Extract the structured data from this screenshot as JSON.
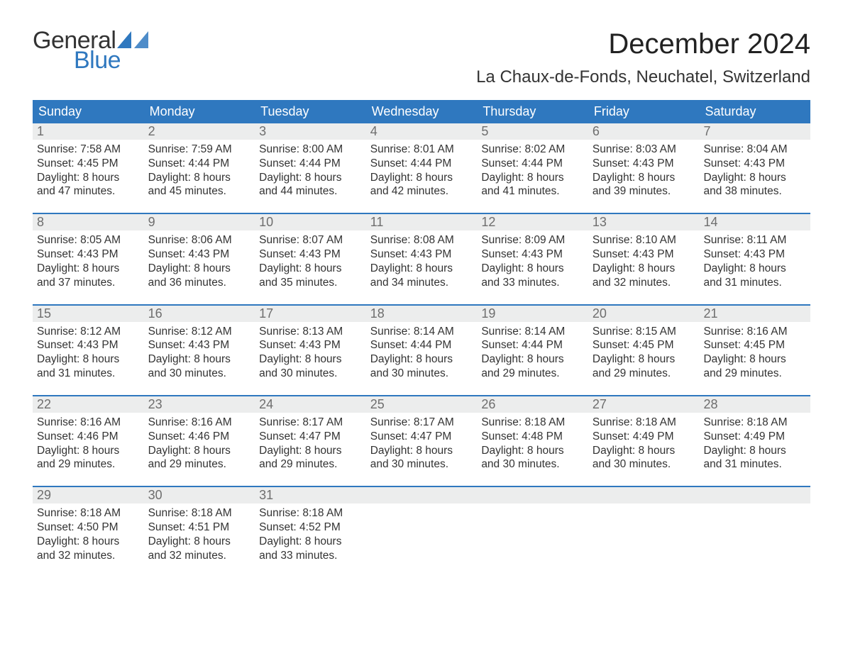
{
  "brand": {
    "word1": "General",
    "word2": "Blue",
    "color_text": "#333333",
    "color_blue": "#2f78bf"
  },
  "title": "December 2024",
  "location": "La Chaux-de-Fonds, Neuchatel, Switzerland",
  "colors": {
    "header_bg": "#2f78bf",
    "header_text": "#ffffff",
    "daynum_bg": "#eceded",
    "daynum_text": "#6e6e6e",
    "body_text": "#333333",
    "rule": "#2f78bf",
    "page_bg": "#ffffff"
  },
  "typography": {
    "title_fontsize": 40,
    "location_fontsize": 24,
    "weekday_fontsize": 18,
    "daynum_fontsize": 18,
    "body_fontsize": 15.5
  },
  "layout": {
    "columns": 7,
    "rows": 5,
    "start_weekday": "Sunday"
  },
  "weekdays": [
    "Sunday",
    "Monday",
    "Tuesday",
    "Wednesday",
    "Thursday",
    "Friday",
    "Saturday"
  ],
  "weeks": [
    [
      {
        "n": "1",
        "sunrise": "Sunrise: 7:58 AM",
        "sunset": "Sunset: 4:45 PM",
        "daylight": "Daylight: 8 hours and 47 minutes."
      },
      {
        "n": "2",
        "sunrise": "Sunrise: 7:59 AM",
        "sunset": "Sunset: 4:44 PM",
        "daylight": "Daylight: 8 hours and 45 minutes."
      },
      {
        "n": "3",
        "sunrise": "Sunrise: 8:00 AM",
        "sunset": "Sunset: 4:44 PM",
        "daylight": "Daylight: 8 hours and 44 minutes."
      },
      {
        "n": "4",
        "sunrise": "Sunrise: 8:01 AM",
        "sunset": "Sunset: 4:44 PM",
        "daylight": "Daylight: 8 hours and 42 minutes."
      },
      {
        "n": "5",
        "sunrise": "Sunrise: 8:02 AM",
        "sunset": "Sunset: 4:44 PM",
        "daylight": "Daylight: 8 hours and 41 minutes."
      },
      {
        "n": "6",
        "sunrise": "Sunrise: 8:03 AM",
        "sunset": "Sunset: 4:43 PM",
        "daylight": "Daylight: 8 hours and 39 minutes."
      },
      {
        "n": "7",
        "sunrise": "Sunrise: 8:04 AM",
        "sunset": "Sunset: 4:43 PM",
        "daylight": "Daylight: 8 hours and 38 minutes."
      }
    ],
    [
      {
        "n": "8",
        "sunrise": "Sunrise: 8:05 AM",
        "sunset": "Sunset: 4:43 PM",
        "daylight": "Daylight: 8 hours and 37 minutes."
      },
      {
        "n": "9",
        "sunrise": "Sunrise: 8:06 AM",
        "sunset": "Sunset: 4:43 PM",
        "daylight": "Daylight: 8 hours and 36 minutes."
      },
      {
        "n": "10",
        "sunrise": "Sunrise: 8:07 AM",
        "sunset": "Sunset: 4:43 PM",
        "daylight": "Daylight: 8 hours and 35 minutes."
      },
      {
        "n": "11",
        "sunrise": "Sunrise: 8:08 AM",
        "sunset": "Sunset: 4:43 PM",
        "daylight": "Daylight: 8 hours and 34 minutes."
      },
      {
        "n": "12",
        "sunrise": "Sunrise: 8:09 AM",
        "sunset": "Sunset: 4:43 PM",
        "daylight": "Daylight: 8 hours and 33 minutes."
      },
      {
        "n": "13",
        "sunrise": "Sunrise: 8:10 AM",
        "sunset": "Sunset: 4:43 PM",
        "daylight": "Daylight: 8 hours and 32 minutes."
      },
      {
        "n": "14",
        "sunrise": "Sunrise: 8:11 AM",
        "sunset": "Sunset: 4:43 PM",
        "daylight": "Daylight: 8 hours and 31 minutes."
      }
    ],
    [
      {
        "n": "15",
        "sunrise": "Sunrise: 8:12 AM",
        "sunset": "Sunset: 4:43 PM",
        "daylight": "Daylight: 8 hours and 31 minutes."
      },
      {
        "n": "16",
        "sunrise": "Sunrise: 8:12 AM",
        "sunset": "Sunset: 4:43 PM",
        "daylight": "Daylight: 8 hours and 30 minutes."
      },
      {
        "n": "17",
        "sunrise": "Sunrise: 8:13 AM",
        "sunset": "Sunset: 4:43 PM",
        "daylight": "Daylight: 8 hours and 30 minutes."
      },
      {
        "n": "18",
        "sunrise": "Sunrise: 8:14 AM",
        "sunset": "Sunset: 4:44 PM",
        "daylight": "Daylight: 8 hours and 30 minutes."
      },
      {
        "n": "19",
        "sunrise": "Sunrise: 8:14 AM",
        "sunset": "Sunset: 4:44 PM",
        "daylight": "Daylight: 8 hours and 29 minutes."
      },
      {
        "n": "20",
        "sunrise": "Sunrise: 8:15 AM",
        "sunset": "Sunset: 4:45 PM",
        "daylight": "Daylight: 8 hours and 29 minutes."
      },
      {
        "n": "21",
        "sunrise": "Sunrise: 8:16 AM",
        "sunset": "Sunset: 4:45 PM",
        "daylight": "Daylight: 8 hours and 29 minutes."
      }
    ],
    [
      {
        "n": "22",
        "sunrise": "Sunrise: 8:16 AM",
        "sunset": "Sunset: 4:46 PM",
        "daylight": "Daylight: 8 hours and 29 minutes."
      },
      {
        "n": "23",
        "sunrise": "Sunrise: 8:16 AM",
        "sunset": "Sunset: 4:46 PM",
        "daylight": "Daylight: 8 hours and 29 minutes."
      },
      {
        "n": "24",
        "sunrise": "Sunrise: 8:17 AM",
        "sunset": "Sunset: 4:47 PM",
        "daylight": "Daylight: 8 hours and 29 minutes."
      },
      {
        "n": "25",
        "sunrise": "Sunrise: 8:17 AM",
        "sunset": "Sunset: 4:47 PM",
        "daylight": "Daylight: 8 hours and 30 minutes."
      },
      {
        "n": "26",
        "sunrise": "Sunrise: 8:18 AM",
        "sunset": "Sunset: 4:48 PM",
        "daylight": "Daylight: 8 hours and 30 minutes."
      },
      {
        "n": "27",
        "sunrise": "Sunrise: 8:18 AM",
        "sunset": "Sunset: 4:49 PM",
        "daylight": "Daylight: 8 hours and 30 minutes."
      },
      {
        "n": "28",
        "sunrise": "Sunrise: 8:18 AM",
        "sunset": "Sunset: 4:49 PM",
        "daylight": "Daylight: 8 hours and 31 minutes."
      }
    ],
    [
      {
        "n": "29",
        "sunrise": "Sunrise: 8:18 AM",
        "sunset": "Sunset: 4:50 PM",
        "daylight": "Daylight: 8 hours and 32 minutes."
      },
      {
        "n": "30",
        "sunrise": "Sunrise: 8:18 AM",
        "sunset": "Sunset: 4:51 PM",
        "daylight": "Daylight: 8 hours and 32 minutes."
      },
      {
        "n": "31",
        "sunrise": "Sunrise: 8:18 AM",
        "sunset": "Sunset: 4:52 PM",
        "daylight": "Daylight: 8 hours and 33 minutes."
      },
      null,
      null,
      null,
      null
    ]
  ]
}
